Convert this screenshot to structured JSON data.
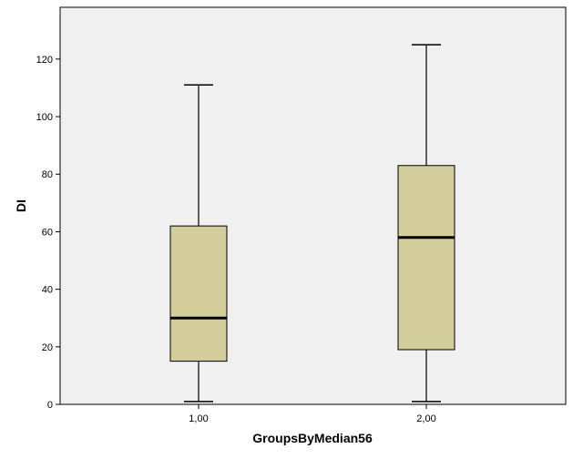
{
  "chart_data": {
    "type": "boxplot",
    "title": "",
    "xlabel": "GroupsByMedian56",
    "ylabel": "DI",
    "ylim": [
      0,
      138
    ],
    "yticks": [
      "0",
      "20",
      "40",
      "60",
      "80",
      "100",
      "120"
    ],
    "yticks_values": [
      0,
      20,
      40,
      60,
      80,
      100,
      120
    ],
    "categories": [
      "1,00",
      "2,00"
    ],
    "boxes": [
      {
        "category": "1,00",
        "whisker_low": 1,
        "q1": 15,
        "median": 30,
        "q3": 62,
        "whisker_high": 111
      },
      {
        "category": "2,00",
        "whisker_low": 1,
        "q1": 19,
        "median": 58,
        "q3": 83,
        "whisker_high": 125
      }
    ],
    "grid": false,
    "legend": "none",
    "colors": {
      "box_fill": "#d3ce9b",
      "plot_background": "#f0f0f0",
      "line": "#000000"
    }
  }
}
